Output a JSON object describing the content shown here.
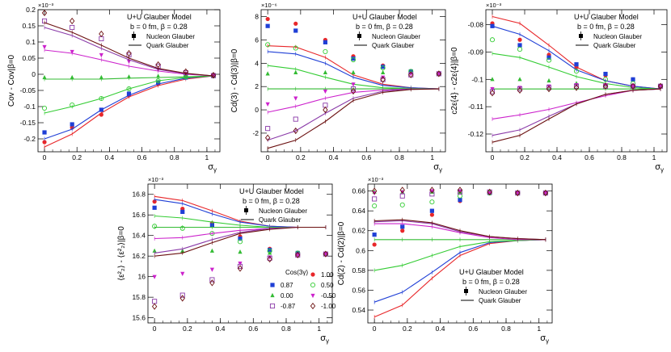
{
  "colors": {
    "cos_1.00": "#e8272a",
    "cos_0.87": "#1f3fd6",
    "cos_0.50": "#33cc33",
    "cos_0.00": "#33bb33",
    "cos_-0.50": "#cc22cc",
    "cos_-0.87": "#8a3aa8",
    "cos_-1.00": "#6b1010"
  },
  "legend_common": {
    "nucleon": "Nucleon Glauber",
    "quark": "Quark Glauber",
    "cos_title": "Cos(3γ)"
  },
  "chart_data": [
    {
      "id": "p1",
      "type": "scatter",
      "title_lines": [
        "U+U Glauber Model",
        "b = 0 fm, β = 0.28"
      ],
      "ylabel": "Cov - Cov|β=0",
      "xlabel": "σγ",
      "exponent": "×10⁻³",
      "xlim": [
        -0.04,
        1.08
      ],
      "ylim": [
        -0.24,
        0.2
      ],
      "xticks": [
        0,
        0.2,
        0.4,
        0.6,
        0.8,
        1
      ],
      "yticks": [
        -0.2,
        -0.15,
        -0.1,
        -0.05,
        0,
        0.05,
        0.1,
        0.15,
        0.2
      ],
      "x": [
        0,
        0.17,
        0.35,
        0.52,
        0.7,
        0.87,
        1.04
      ],
      "series": [
        {
          "cos": "1.00",
          "nucleon": [
            -0.21,
            -0.165,
            -0.125,
            -0.065,
            -0.03,
            -0.01,
            -0.005
          ],
          "quark": [
            -0.225,
            -0.185,
            -0.12,
            -0.07,
            -0.035,
            -0.015,
            -0.005
          ]
        },
        {
          "cos": "0.87",
          "nucleon": [
            -0.18,
            -0.155,
            -0.11,
            -0.06,
            -0.025,
            -0.01,
            -0.005
          ],
          "quark": [
            -0.2,
            -0.17,
            -0.11,
            -0.065,
            -0.03,
            -0.012,
            -0.005
          ]
        },
        {
          "cos": "0.50",
          "nucleon": [
            -0.105,
            -0.095,
            -0.075,
            -0.045,
            -0.02,
            -0.008,
            -0.005
          ],
          "quark": [
            -0.12,
            -0.1,
            -0.075,
            -0.045,
            -0.02,
            -0.01,
            -0.005
          ]
        },
        {
          "cos": "0.00",
          "nucleon": [
            -0.01,
            -0.01,
            -0.01,
            -0.008,
            -0.006,
            -0.005,
            -0.005
          ],
          "quark": [
            -0.015,
            -0.015,
            -0.015,
            -0.012,
            -0.01,
            -0.008,
            -0.005
          ]
        },
        {
          "cos": "-0.50",
          "nucleon": [
            0.085,
            0.07,
            0.06,
            0.04,
            0.015,
            0.002,
            -0.004
          ],
          "quark": [
            0.075,
            0.065,
            0.045,
            0.025,
            0.01,
            0.0,
            -0.005
          ]
        },
        {
          "cos": "-0.87",
          "nucleon": [
            0.165,
            0.145,
            0.11,
            0.06,
            0.025,
            0.005,
            -0.004
          ],
          "quark": [
            0.145,
            0.12,
            0.08,
            0.045,
            0.015,
            0.002,
            -0.005
          ]
        },
        {
          "cos": "-1.00",
          "nucleon": [
            0.19,
            0.165,
            0.125,
            0.065,
            0.03,
            0.008,
            -0.003
          ],
          "quark": [
            0.16,
            0.13,
            0.09,
            0.05,
            0.018,
            0.003,
            -0.005
          ]
        }
      ]
    },
    {
      "id": "p2",
      "type": "scatter",
      "title_lines": [
        "U+U Glauber Model",
        "b = 0 fm, β = 0.28"
      ],
      "ylabel": "Cd(3) - Cd(3)|β=0",
      "xlabel": "σγ",
      "exponent": "×10⁻⁶",
      "xlim": [
        -0.04,
        1.08
      ],
      "ylim": [
        -3.6,
        8.6
      ],
      "xticks": [
        0,
        0.2,
        0.4,
        0.6,
        0.8,
        1
      ],
      "yticks": [
        -2,
        0,
        2,
        4,
        6,
        8
      ],
      "x": [
        0,
        0.17,
        0.35,
        0.52,
        0.7,
        0.87,
        1.04
      ],
      "series": [
        {
          "cos": "1.00",
          "nucleon": [
            7.8,
            7.4,
            6.0,
            4.6,
            3.8,
            3.3,
            3.1
          ],
          "quark": [
            5.5,
            5.4,
            4.5,
            3.0,
            2.2,
            1.9,
            1.8
          ]
        },
        {
          "cos": "0.87",
          "nucleon": [
            7.2,
            6.8,
            5.8,
            4.4,
            3.7,
            3.3,
            3.1
          ],
          "quark": [
            5.0,
            4.8,
            4.0,
            2.8,
            2.1,
            1.9,
            1.8
          ]
        },
        {
          "cos": "0.50",
          "nucleon": [
            5.6,
            5.3,
            5.0,
            4.3,
            3.6,
            3.3,
            3.1
          ],
          "quark": [
            3.8,
            3.5,
            2.8,
            2.2,
            1.9,
            1.85,
            1.8
          ]
        },
        {
          "cos": "0.00",
          "nucleon": [
            3.1,
            3.2,
            3.2,
            3.2,
            3.2,
            3.2,
            3.1
          ],
          "quark": [
            1.8,
            1.8,
            1.8,
            1.8,
            1.8,
            1.8,
            1.8
          ]
        },
        {
          "cos": "-0.50",
          "nucleon": [
            0.5,
            1.0,
            1.6,
            2.2,
            2.8,
            3.1,
            3.1
          ],
          "quark": [
            -0.2,
            0.3,
            1.0,
            1.5,
            1.7,
            1.8,
            1.8
          ]
        },
        {
          "cos": "-0.87",
          "nucleon": [
            -1.6,
            -0.8,
            0.4,
            1.8,
            2.6,
            3.0,
            3.1
          ],
          "quark": [
            -2.6,
            -1.8,
            -0.3,
            1.0,
            1.6,
            1.8,
            1.8
          ]
        },
        {
          "cos": "-1.00",
          "nucleon": [
            -2.4,
            -1.8,
            0.0,
            1.6,
            2.6,
            3.0,
            3.1
          ],
          "quark": [
            -3.3,
            -2.6,
            -1.0,
            0.8,
            1.5,
            1.75,
            1.8
          ]
        }
      ]
    },
    {
      "id": "p3",
      "type": "scatter",
      "title_lines": [
        "U+U Glauber Model",
        "b = 0 fm, β = 0.28"
      ],
      "ylabel": "c2ε{4} - c2ε{4}|β=0",
      "xlabel": "σγ",
      "exponent": "×10⁻³",
      "xlim": [
        -0.04,
        1.08
      ],
      "ylim": [
        -0.1265,
        -0.0745
      ],
      "xticks": [
        0,
        0.2,
        0.4,
        0.6,
        0.8,
        1
      ],
      "yticks": [
        -0.12,
        -0.11,
        -0.1,
        -0.09,
        -0.08
      ],
      "x": [
        0,
        0.17,
        0.35,
        0.52,
        0.7,
        0.87,
        1.04
      ],
      "series": [
        {
          "cos": "1.00",
          "nucleon": [
            -0.0795,
            -0.0855,
            -0.091,
            -0.0955,
            -0.0985,
            -0.1,
            -0.1025
          ],
          "quark": [
            -0.077,
            -0.0795,
            -0.0875,
            -0.0955,
            -0.1005,
            -0.1025,
            -0.1035
          ]
        },
        {
          "cos": "0.87",
          "nucleon": [
            -0.0805,
            -0.0875,
            -0.092,
            -0.0945,
            -0.098,
            -0.1,
            -0.1025
          ],
          "quark": [
            -0.0805,
            -0.0835,
            -0.0895,
            -0.0965,
            -0.1005,
            -0.1025,
            -0.1035
          ]
        },
        {
          "cos": "0.50",
          "nucleon": [
            -0.0855,
            -0.089,
            -0.093,
            -0.097,
            -0.1,
            -0.1015,
            -0.1025
          ],
          "quark": [
            -0.0905,
            -0.092,
            -0.0955,
            -0.099,
            -0.1015,
            -0.103,
            -0.1035
          ]
        },
        {
          "cos": "0.00",
          "nucleon": [
            -0.1,
            -0.1,
            -0.1005,
            -0.1015,
            -0.102,
            -0.1025,
            -0.1025
          ],
          "quark": [
            -0.1035,
            -0.1035,
            -0.1035,
            -0.1035,
            -0.1035,
            -0.1035,
            -0.1035
          ]
        },
        {
          "cos": "-0.50",
          "nucleon": [
            -0.1035,
            -0.103,
            -0.1025,
            -0.102,
            -0.102,
            -0.1025,
            -0.1025
          ],
          "quark": [
            -0.1145,
            -0.113,
            -0.111,
            -0.1085,
            -0.106,
            -0.104,
            -0.1035
          ]
        },
        {
          "cos": "-0.87",
          "nucleon": [
            -0.1045,
            -0.1035,
            -0.103,
            -0.1025,
            -0.1025,
            -0.1025,
            -0.1025
          ],
          "quark": [
            -0.1205,
            -0.1185,
            -0.1135,
            -0.109,
            -0.1055,
            -0.104,
            -0.1035
          ]
        },
        {
          "cos": "-1.00",
          "nucleon": [
            -0.105,
            -0.104,
            -0.1035,
            -0.103,
            -0.1025,
            -0.1025,
            -0.1025
          ],
          "quark": [
            -0.123,
            -0.1205,
            -0.1145,
            -0.109,
            -0.1055,
            -0.104,
            -0.1035
          ]
        }
      ]
    },
    {
      "id": "p4",
      "type": "scatter",
      "title_lines": [
        "U+U Glauber Model",
        "b = 0 fm, β = 0.28"
      ],
      "ylabel": "⟨ε²₂⟩ - ⟨ε²₂⟩|β=0",
      "xlabel": "σγ",
      "exponent": "×10⁻³",
      "xlim": [
        -0.04,
        1.08
      ],
      "ylim": [
        15.55,
        16.9
      ],
      "xticks": [
        0,
        0.2,
        0.4,
        0.6,
        0.8,
        1
      ],
      "yticks": [
        15.6,
        15.8,
        16,
        16.2,
        16.4,
        16.6,
        16.8
      ],
      "x": [
        0,
        0.17,
        0.35,
        0.52,
        0.7,
        0.87,
        1.04
      ],
      "cos_legend": [
        {
          "cos": "1.00",
          "label": "1.00"
        },
        {
          "cos": "0.87",
          "label": "0.87"
        },
        {
          "cos": "0.50",
          "label": "0.50"
        },
        {
          "cos": "0.00",
          "label": "0.00"
        },
        {
          "cos": "-0.50",
          "label": "-0.50"
        },
        {
          "cos": "-0.87",
          "label": "-0.87"
        },
        {
          "cos": "-1.00",
          "label": "-1.00"
        }
      ],
      "series": [
        {
          "cos": "1.00",
          "nucleon": [
            16.73,
            16.66,
            16.52,
            16.39,
            16.27,
            16.23,
            16.22
          ],
          "quark": [
            16.78,
            16.74,
            16.64,
            16.54,
            16.49,
            16.48,
            16.48
          ]
        },
        {
          "cos": "0.87",
          "nucleon": [
            16.67,
            16.63,
            16.5,
            16.37,
            16.26,
            16.23,
            16.22
          ],
          "quark": [
            16.75,
            16.71,
            16.61,
            16.53,
            16.49,
            16.48,
            16.48
          ]
        },
        {
          "cos": "0.50",
          "nucleon": [
            16.49,
            16.47,
            16.42,
            16.34,
            16.25,
            16.23,
            16.22
          ],
          "quark": [
            16.59,
            16.57,
            16.53,
            16.5,
            16.48,
            16.48,
            16.48
          ]
        },
        {
          "cos": "0.00",
          "nucleon": [
            16.25,
            16.25,
            16.25,
            16.24,
            16.23,
            16.22,
            16.22
          ],
          "quark": [
            16.48,
            16.48,
            16.48,
            16.48,
            16.48,
            16.48,
            16.48
          ]
        },
        {
          "cos": "-0.50",
          "nucleon": [
            16.0,
            16.03,
            16.07,
            16.13,
            16.19,
            16.21,
            16.22
          ],
          "quark": [
            16.37,
            16.38,
            16.42,
            16.45,
            16.47,
            16.48,
            16.48
          ]
        },
        {
          "cos": "-0.87",
          "nucleon": [
            15.76,
            15.82,
            15.97,
            16.1,
            16.18,
            16.21,
            16.22
          ],
          "quark": [
            16.23,
            16.27,
            16.36,
            16.43,
            16.47,
            16.48,
            16.48
          ]
        },
        {
          "cos": "-1.00",
          "nucleon": [
            15.71,
            15.79,
            15.94,
            16.08,
            16.17,
            16.21,
            16.22
          ],
          "quark": [
            16.2,
            16.23,
            16.33,
            16.42,
            16.46,
            16.48,
            16.48
          ]
        }
      ]
    },
    {
      "id": "p5",
      "type": "scatter",
      "title_lines": [
        "U+U Glauber Model",
        "b = 0 fm, β = 0.28"
      ],
      "ylabel": "Cd(2) - Cd(2)|β=0",
      "xlabel": "σγ",
      "exponent": "×10⁻³",
      "xlim": [
        -0.04,
        1.08
      ],
      "ylim": [
        0.527,
        0.667
      ],
      "xticks": [
        0,
        0.2,
        0.4,
        0.6,
        0.8,
        1
      ],
      "yticks": [
        0.54,
        0.56,
        0.58,
        0.6,
        0.62,
        0.64,
        0.66
      ],
      "x": [
        0,
        0.17,
        0.35,
        0.52,
        0.7,
        0.87,
        1.04
      ],
      "series": [
        {
          "cos": "1.00",
          "nucleon": [
            0.606,
            0.62,
            0.636,
            0.65,
            0.658,
            0.658,
            0.658
          ],
          "quark": [
            0.533,
            0.545,
            0.572,
            0.595,
            0.607,
            0.61,
            0.611
          ]
        },
        {
          "cos": "0.87",
          "nucleon": [
            0.616,
            0.624,
            0.64,
            0.651,
            0.658,
            0.658,
            0.658
          ],
          "quark": [
            0.548,
            0.558,
            0.578,
            0.598,
            0.608,
            0.61,
            0.611
          ]
        },
        {
          "cos": "0.50",
          "nucleon": [
            0.645,
            0.646,
            0.649,
            0.655,
            0.658,
            0.658,
            0.658
          ],
          "quark": [
            0.58,
            0.585,
            0.595,
            0.604,
            0.609,
            0.61,
            0.611
          ]
        },
        {
          "cos": "0.00",
          "nucleon": [
            0.659,
            0.659,
            0.659,
            0.659,
            0.658,
            0.658,
            0.658
          ],
          "quark": [
            0.611,
            0.611,
            0.611,
            0.611,
            0.611,
            0.611,
            0.611
          ]
        },
        {
          "cos": "-0.50",
          "nucleon": [
            0.658,
            0.659,
            0.66,
            0.66,
            0.658,
            0.658,
            0.658
          ],
          "quark": [
            0.627,
            0.627,
            0.624,
            0.618,
            0.613,
            0.611,
            0.611
          ]
        },
        {
          "cos": "-0.87",
          "nucleon": [
            0.652,
            0.655,
            0.657,
            0.659,
            0.659,
            0.658,
            0.658
          ],
          "quark": [
            0.629,
            0.63,
            0.627,
            0.619,
            0.614,
            0.612,
            0.611
          ]
        },
        {
          "cos": "-1.00",
          "nucleon": [
            0.66,
            0.661,
            0.661,
            0.661,
            0.659,
            0.658,
            0.658
          ],
          "quark": [
            0.63,
            0.631,
            0.628,
            0.62,
            0.614,
            0.612,
            0.611
          ]
        }
      ]
    }
  ]
}
